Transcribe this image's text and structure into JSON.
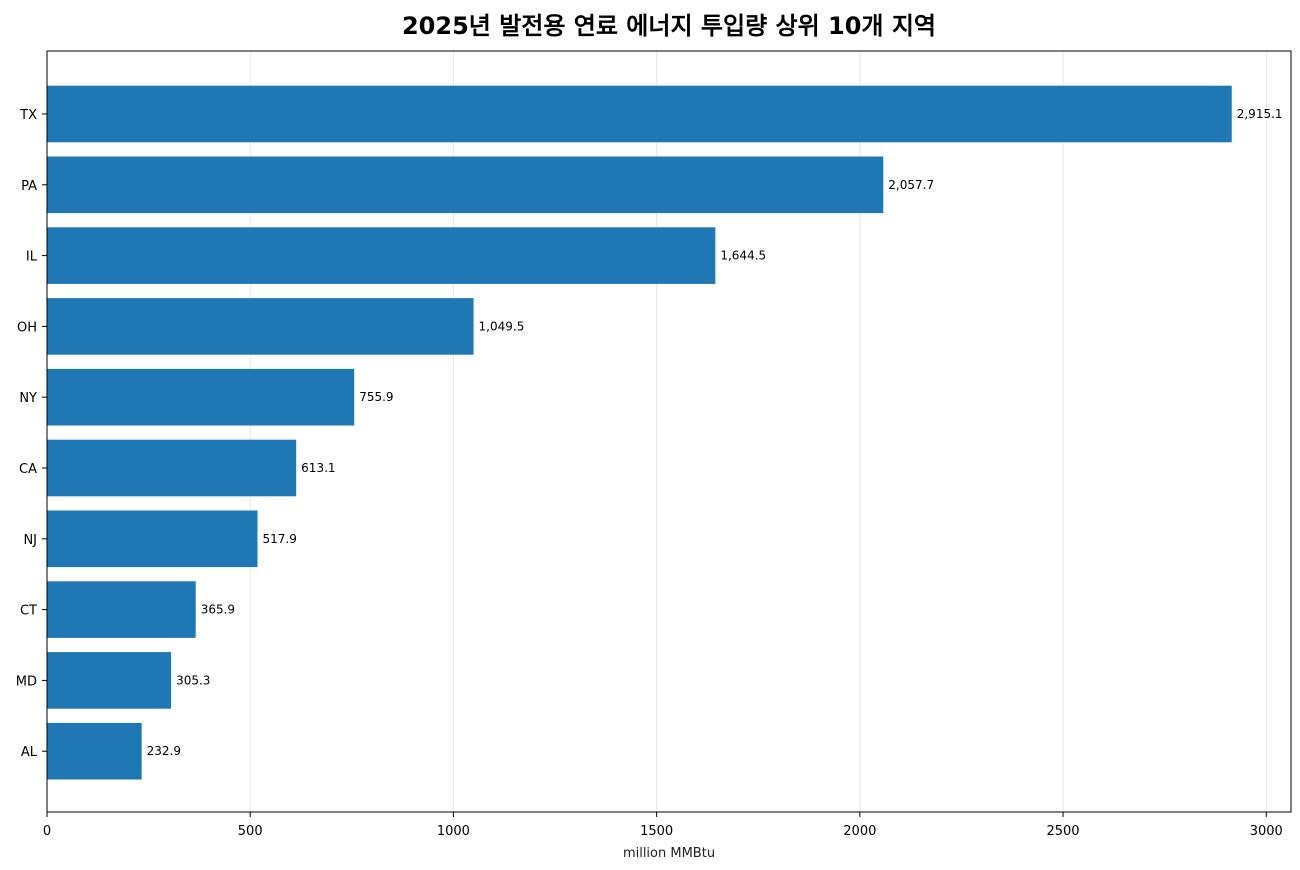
{
  "chart_data": {
    "type": "bar",
    "orientation": "horizontal",
    "title": "2025년 발전용 연료 에너지 투입량 상위 10개 지역",
    "xlabel": "million MMBtu",
    "ylabel": "",
    "categories": [
      "TX",
      "PA",
      "IL",
      "OH",
      "NY",
      "CA",
      "NJ",
      "CT",
      "MD",
      "AL"
    ],
    "values": [
      2915.1,
      2057.7,
      1644.5,
      1049.5,
      755.9,
      613.1,
      517.9,
      365.9,
      305.3,
      232.9
    ],
    "value_labels": [
      "2,915.1",
      "2,057.7",
      "1,644.5",
      "1,049.5",
      "755.9",
      "613.1",
      "517.9",
      "365.9",
      "305.3",
      "232.9"
    ],
    "x_ticks": [
      0,
      500,
      1000,
      1500,
      2000,
      2500,
      3000
    ],
    "xlim": [
      0,
      3060.9
    ],
    "grid": "x",
    "bar_color": "#1f77b4"
  }
}
